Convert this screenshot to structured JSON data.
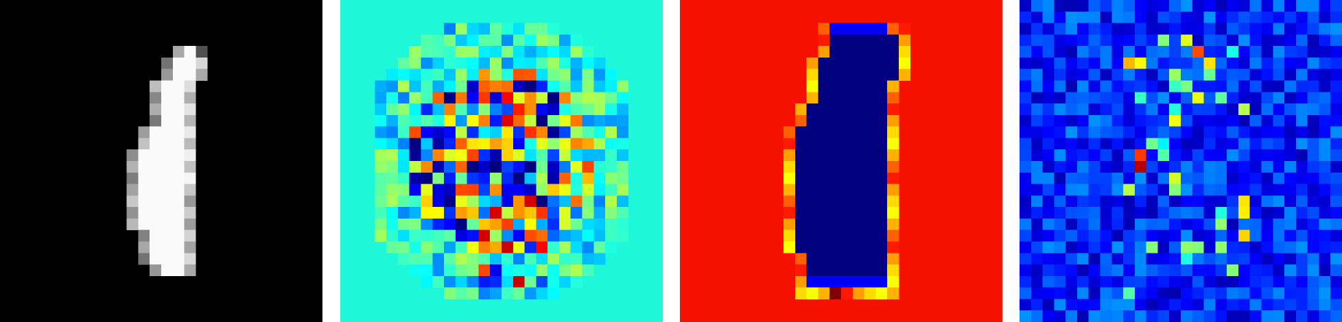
{
  "figure": {
    "panels": [
      {
        "kind": "input-digit",
        "colormap": "gray",
        "background": "#000000"
      },
      {
        "kind": "attribution-map",
        "colormap": "jet",
        "background": "#1ff7d9"
      },
      {
        "kind": "edge-map",
        "colormap": "jet",
        "background": "#f51000",
        "fill": "#00007f"
      },
      {
        "kind": "noise-map",
        "colormap": "jet",
        "background": "#0000a8"
      }
    ],
    "grid_cells": 28
  }
}
